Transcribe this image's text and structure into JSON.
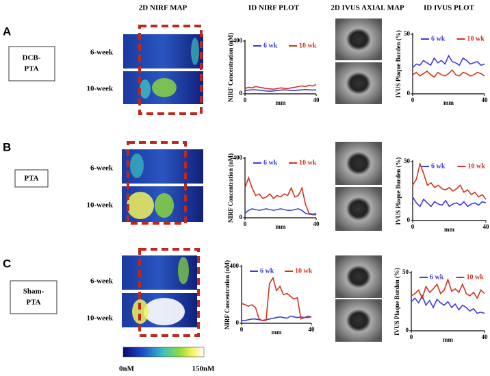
{
  "headers": [
    "2D NIRF MAP",
    "ID NIRF PLOT",
    "2D IVUS AXIAL MAP",
    "ID IVUS PLOT"
  ],
  "panels": [
    {
      "letter": "A",
      "group": [
        "DCB-",
        "PTA"
      ],
      "rows": [
        "6-week",
        "10-week"
      ]
    },
    {
      "letter": "B",
      "group": [
        "PTA"
      ],
      "rows": [
        "6-week",
        "10-week"
      ]
    },
    {
      "letter": "C",
      "group": [
        "Sham-",
        "PTA"
      ],
      "rows": [
        "6-week",
        "10-week"
      ]
    }
  ],
  "colorbar": {
    "min_label": "0nM",
    "max_label": "150nM"
  },
  "chart_data": [
    {
      "type": "line",
      "xlabel": "mm",
      "ylabel": "NIRF Concentration (nM)",
      "x": [
        0,
        2,
        4,
        6,
        8,
        10,
        12,
        14,
        16,
        18,
        20,
        22,
        24,
        26,
        28,
        30,
        32,
        34,
        36,
        38,
        40
      ],
      "xlim": [
        0,
        40
      ],
      "xticks": [
        0,
        40
      ],
      "ylim": [
        0,
        400
      ],
      "yticks": [
        0,
        400
      ],
      "series": [
        {
          "name": "6 wk",
          "color": "#3a3ae6",
          "values": [
            25,
            28,
            30,
            30,
            28,
            25,
            22,
            20,
            22,
            25,
            28,
            30,
            28,
            25,
            25,
            28,
            30,
            32,
            30,
            28,
            30
          ]
        },
        {
          "name": "10 wk",
          "color": "#d2321e",
          "values": [
            40,
            50,
            45,
            55,
            50,
            45,
            40,
            38,
            35,
            40,
            45,
            42,
            40,
            45,
            50,
            55,
            60,
            55,
            65,
            60,
            70
          ]
        }
      ]
    },
    {
      "type": "line",
      "xlabel": "mm",
      "ylabel": "IVUS Plaque Burden (%)",
      "x": [
        0,
        2,
        4,
        6,
        8,
        10,
        12,
        14,
        16,
        18,
        20,
        22,
        24,
        26,
        28,
        30,
        32,
        34,
        36,
        38,
        40
      ],
      "xlim": [
        0,
        40
      ],
      "xticks": [
        0,
        40
      ],
      "ylim": [
        0,
        50
      ],
      "yticks": [
        0,
        50
      ],
      "series": [
        {
          "name": "6 wk",
          "color": "#3a3ae6",
          "values": [
            22,
            25,
            24,
            28,
            26,
            24,
            30,
            26,
            28,
            25,
            32,
            27,
            26,
            24,
            30,
            28,
            25,
            26,
            27,
            24,
            25
          ]
        },
        {
          "name": "10 wk",
          "color": "#d2321e",
          "values": [
            16,
            18,
            15,
            17,
            19,
            16,
            14,
            18,
            16,
            15,
            17,
            20,
            16,
            15,
            18,
            17,
            15,
            16,
            18,
            17,
            15
          ]
        }
      ]
    },
    {
      "type": "line",
      "xlabel": "mm",
      "ylabel": "NIRF Concentration (nM)",
      "x": [
        0,
        2,
        4,
        6,
        8,
        10,
        12,
        14,
        16,
        18,
        20,
        22,
        24,
        26,
        28,
        30,
        32,
        34,
        36,
        38,
        40
      ],
      "xlim": [
        0,
        40
      ],
      "xticks": [
        0,
        40
      ],
      "ylim": [
        0,
        400
      ],
      "yticks": [
        0,
        400
      ],
      "series": [
        {
          "name": "6 wk",
          "color": "#3a3ae6",
          "values": [
            30,
            50,
            60,
            55,
            50,
            55,
            60,
            55,
            50,
            55,
            60,
            55,
            50,
            50,
            55,
            60,
            50,
            30,
            25,
            20,
            20
          ]
        },
        {
          "name": "10 wk",
          "color": "#d2321e",
          "values": [
            200,
            270,
            200,
            150,
            160,
            130,
            140,
            160,
            130,
            150,
            140,
            160,
            150,
            200,
            140,
            150,
            200,
            90,
            30,
            25,
            30
          ]
        }
      ]
    },
    {
      "type": "line",
      "xlabel": "mm",
      "ylabel": "IVUS Plaque Burden (%)",
      "x": [
        0,
        2,
        4,
        6,
        8,
        10,
        12,
        14,
        16,
        18,
        20,
        22,
        24,
        26,
        28,
        30,
        32,
        34,
        36,
        38,
        40
      ],
      "xlim": [
        0,
        40
      ],
      "xticks": [
        0,
        40
      ],
      "ylim": [
        0,
        50
      ],
      "yticks": [
        0,
        50
      ],
      "series": [
        {
          "name": "6 wk",
          "color": "#3a3ae6",
          "values": [
            20,
            15,
            12,
            18,
            15,
            12,
            16,
            14,
            13,
            17,
            12,
            14,
            15,
            13,
            16,
            12,
            14,
            15,
            13,
            16,
            15
          ]
        },
        {
          "name": "10 wk",
          "color": "#d2321e",
          "values": [
            30,
            35,
            48,
            40,
            30,
            32,
            28,
            30,
            27,
            26,
            28,
            25,
            27,
            30,
            24,
            26,
            22,
            24,
            20,
            22,
            18
          ]
        }
      ]
    },
    {
      "type": "line",
      "xlabel": "mm",
      "ylabel": "NIRF Concentration (nM)",
      "x": [
        0,
        2,
        4,
        6,
        8,
        10,
        12,
        14,
        16,
        18,
        20,
        22,
        24,
        26,
        28,
        30,
        32,
        34,
        36,
        38,
        40
      ],
      "xlim": [
        0,
        40
      ],
      "xticks": [
        0,
        40
      ],
      "ylim": [
        0,
        400
      ],
      "yticks": [
        0,
        400
      ],
      "series": [
        {
          "name": "6 wk",
          "color": "#3a3ae6",
          "values": [
            20,
            20,
            25,
            30,
            30,
            25,
            20,
            25,
            30,
            35,
            40,
            45,
            40,
            35,
            50,
            45,
            40,
            45,
            40,
            50,
            45
          ]
        },
        {
          "name": "10 wk",
          "color": "#d2321e",
          "values": [
            140,
            130,
            120,
            130,
            110,
            30,
            20,
            20,
            280,
            320,
            230,
            260,
            200,
            210,
            190,
            170,
            180,
            30,
            40,
            40,
            45
          ]
        }
      ]
    },
    {
      "type": "line",
      "xlabel": "mm",
      "ylabel": "IVUS Plaque Burden (%)",
      "x": [
        0,
        2,
        4,
        6,
        8,
        10,
        12,
        14,
        16,
        18,
        20,
        22,
        24,
        26,
        28,
        30,
        32,
        34,
        36,
        38,
        40
      ],
      "xlim": [
        0,
        40
      ],
      "xticks": [
        0,
        40
      ],
      "ylim": [
        0,
        50
      ],
      "yticks": [
        0,
        50
      ],
      "series": [
        {
          "name": "6 wk",
          "color": "#3a3ae6",
          "values": [
            25,
            28,
            24,
            30,
            22,
            26,
            20,
            27,
            24,
            22,
            25,
            20,
            23,
            18,
            22,
            20,
            17,
            19,
            15,
            16,
            15
          ]
        },
        {
          "name": "10 wk",
          "color": "#d2321e",
          "values": [
            30,
            32,
            35,
            28,
            38,
            33,
            36,
            40,
            32,
            35,
            44,
            34,
            36,
            33,
            40,
            32,
            30,
            33,
            28,
            35,
            32
          ]
        }
      ]
    }
  ]
}
